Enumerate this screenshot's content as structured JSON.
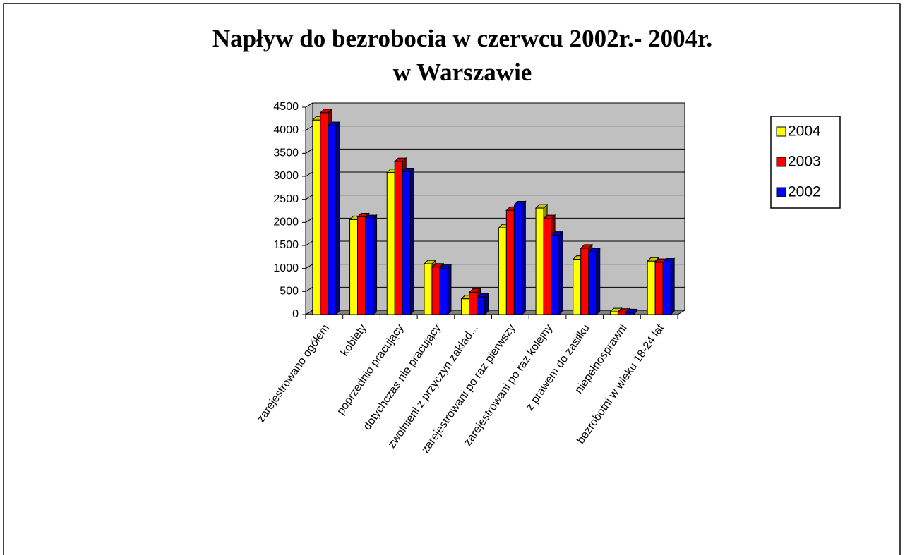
{
  "chart_data": {
    "type": "bar",
    "title": [
      "Napływ do bezrobocia w czerwcu 2002r.- 2004r.",
      "w Warszawie"
    ],
    "categories": [
      "zarejestrowano ogółem",
      "kobiety",
      "poprzednio pracujący",
      "dotychczas nie pracujący",
      "zwolnieni z przyczyn zakład...",
      "zarejestrowani po raz pierwszy",
      "zarejestrowani po raz kolejny",
      "z prawem do zasiłku",
      "niepełnosprawni",
      "bezrobotni w wieku 18-24 lat"
    ],
    "series": [
      {
        "name": "2004",
        "color": "#ffff00",
        "values": [
          4220,
          2060,
          3080,
          1100,
          340,
          1880,
          2310,
          1200,
          60,
          1160
        ]
      },
      {
        "name": "2003",
        "color": "#ff0000",
        "values": [
          4380,
          2120,
          3320,
          1030,
          480,
          2260,
          2080,
          1440,
          50,
          1130
        ]
      },
      {
        "name": "2002",
        "color": "#0000ff",
        "values": [
          4100,
          2080,
          3100,
          1000,
          380,
          2380,
          1720,
          1360,
          40,
          1140
        ]
      }
    ],
    "ylim": [
      0,
      4500
    ],
    "yticks": [
      0,
      500,
      1000,
      1500,
      2000,
      2500,
      3000,
      3500,
      4000,
      4500
    ],
    "grid": true,
    "legend": "right"
  }
}
